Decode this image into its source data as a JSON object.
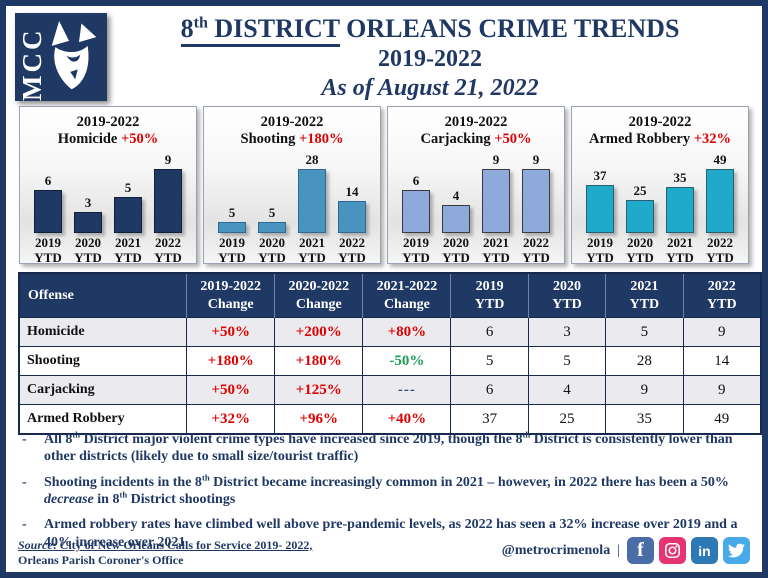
{
  "colors": {
    "navy": "#1F3864",
    "red": "#E00000",
    "green": "#179C55",
    "alt_row": "#EAEAEF"
  },
  "logo": {
    "text": "MCC"
  },
  "header": {
    "title_num": "8",
    "title_sup": "th",
    "title_district": " DISTRICT",
    "title_rest": " ORLEANS CRIME TRENDS",
    "title_line2": "2019-2022",
    "title_line3": "As of August 21, 2022"
  },
  "chart_data": [
    {
      "type": "bar",
      "title_line1": "2019-2022",
      "name": "Homicide",
      "change": "+50%",
      "categories": [
        "2019 YTD",
        "2020 YTD",
        "2021 YTD",
        "2022 YTD"
      ],
      "values": [
        6,
        3,
        5,
        9
      ],
      "ylim": [
        0,
        9
      ],
      "bar_fill": "#1F3864",
      "bar_border": "#12203C",
      "grid": false,
      "legend": false
    },
    {
      "type": "bar",
      "title_line1": "2019-2022",
      "name": "Shooting",
      "change": "+180%",
      "categories": [
        "2019 YTD",
        "2020 YTD",
        "2021 YTD",
        "2022 YTD"
      ],
      "values": [
        5,
        5,
        28,
        14
      ],
      "ylim": [
        0,
        28
      ],
      "bar_fill": "#4893BF",
      "bar_border": "#2E6A8F",
      "grid": false,
      "legend": false
    },
    {
      "type": "bar",
      "title_line1": "2019-2022",
      "name": "Carjacking",
      "change": "+50%",
      "categories": [
        "2019 YTD",
        "2020 YTD",
        "2021 YTD",
        "2022 YTD"
      ],
      "values": [
        6,
        4,
        9,
        9
      ],
      "ylim": [
        0,
        9
      ],
      "bar_fill": "#8EA9DC",
      "bar_border": "#3B3B3B",
      "grid": false,
      "legend": false
    },
    {
      "type": "bar",
      "title_line1": "2019-2022",
      "name": "Armed Robbery",
      "change": "+32%",
      "categories": [
        "2019 YTD",
        "2020 YTD",
        "2021 YTD",
        "2022 YTD"
      ],
      "values": [
        37,
        25,
        35,
        49
      ],
      "ylim": [
        0,
        49
      ],
      "bar_fill": "#1FA9CB",
      "bar_border": "#2B5F70",
      "grid": false,
      "legend": false
    }
  ],
  "table": {
    "col_headers": [
      {
        "lines": [
          "Offense"
        ]
      },
      {
        "lines": [
          "2019-2022",
          "Change"
        ]
      },
      {
        "lines": [
          "2020-2022",
          "Change"
        ]
      },
      {
        "lines": [
          "2021-2022",
          "Change"
        ]
      },
      {
        "lines": [
          "2019",
          "YTD"
        ]
      },
      {
        "lines": [
          "2020",
          "YTD"
        ]
      },
      {
        "lines": [
          "2021",
          "YTD"
        ]
      },
      {
        "lines": [
          "2022",
          "YTD"
        ]
      }
    ],
    "rows": [
      {
        "offense": "Homicide",
        "alt": true,
        "cells": [
          {
            "text": "+50%",
            "style": "red"
          },
          {
            "text": "+200%",
            "style": "red"
          },
          {
            "text": "+80%",
            "style": "red"
          },
          {
            "text": "6"
          },
          {
            "text": "3"
          },
          {
            "text": "5"
          },
          {
            "text": "9"
          }
        ]
      },
      {
        "offense": "Shooting",
        "alt": false,
        "cells": [
          {
            "text": "+180%",
            "style": "red"
          },
          {
            "text": "+180%",
            "style": "red"
          },
          {
            "text": "-50%",
            "style": "green"
          },
          {
            "text": "5"
          },
          {
            "text": "5"
          },
          {
            "text": "28"
          },
          {
            "text": "14"
          }
        ]
      },
      {
        "offense": "Carjacking",
        "alt": true,
        "cells": [
          {
            "text": "+50%",
            "style": "red"
          },
          {
            "text": "+125%",
            "style": "red"
          },
          {
            "text": "---",
            "style": "dash"
          },
          {
            "text": "6"
          },
          {
            "text": "4"
          },
          {
            "text": "9"
          },
          {
            "text": "9"
          }
        ]
      },
      {
        "offense": "Armed Robbery",
        "alt": false,
        "cells": [
          {
            "text": "+32%",
            "style": "red"
          },
          {
            "text": "+96%",
            "style": "red"
          },
          {
            "text": "+40%",
            "style": "red"
          },
          {
            "text": "37"
          },
          {
            "text": "25"
          },
          {
            "text": "35"
          },
          {
            "text": "49"
          }
        ]
      }
    ]
  },
  "bullets": [
    [
      {
        "t": "All 8"
      },
      {
        "t": "th",
        "sup": true
      },
      {
        "t": " District major violent crime types have increased since 2019, though the 8"
      },
      {
        "t": "th",
        "sup": true
      },
      {
        "t": " District is consistently lower than other districts (likely due to small size/tourist traffic)"
      }
    ],
    [
      {
        "t": "Shooting incidents in the 8"
      },
      {
        "t": "th",
        "sup": true
      },
      {
        "t": " District became increasingly common in 2021 – however, in 2022 there has been a 50% "
      },
      {
        "t": "decrease",
        "italic": true
      },
      {
        "t": " in 8"
      },
      {
        "t": "th",
        "sup": true
      },
      {
        "t": " District shootings"
      }
    ],
    [
      {
        "t": "Armed robbery rates have climbed well above pre-pandemic levels, as 2022 has seen a 32% increase over 2019 and a 40% increase over 2021"
      }
    ]
  ],
  "bullet_marker": "-",
  "footer": {
    "source_label": "Source",
    "source_rest": ": City of New Orleans Calls for Service 2019- 2022,",
    "source_line2": "Orleans Parish Coroner's Office",
    "handle": "@metrocrimenola",
    "separator": "|",
    "social": [
      {
        "icon": "facebook-icon",
        "bg": "#4A6DA8",
        "glyph": "f"
      },
      {
        "icon": "instagram-icon",
        "bg": "#E63472",
        "glyph": ""
      },
      {
        "icon": "linkedin-icon",
        "bg": "#2C79B6",
        "glyph": "in"
      },
      {
        "icon": "twitter-icon",
        "bg": "#47A9E8",
        "glyph": ""
      }
    ]
  }
}
